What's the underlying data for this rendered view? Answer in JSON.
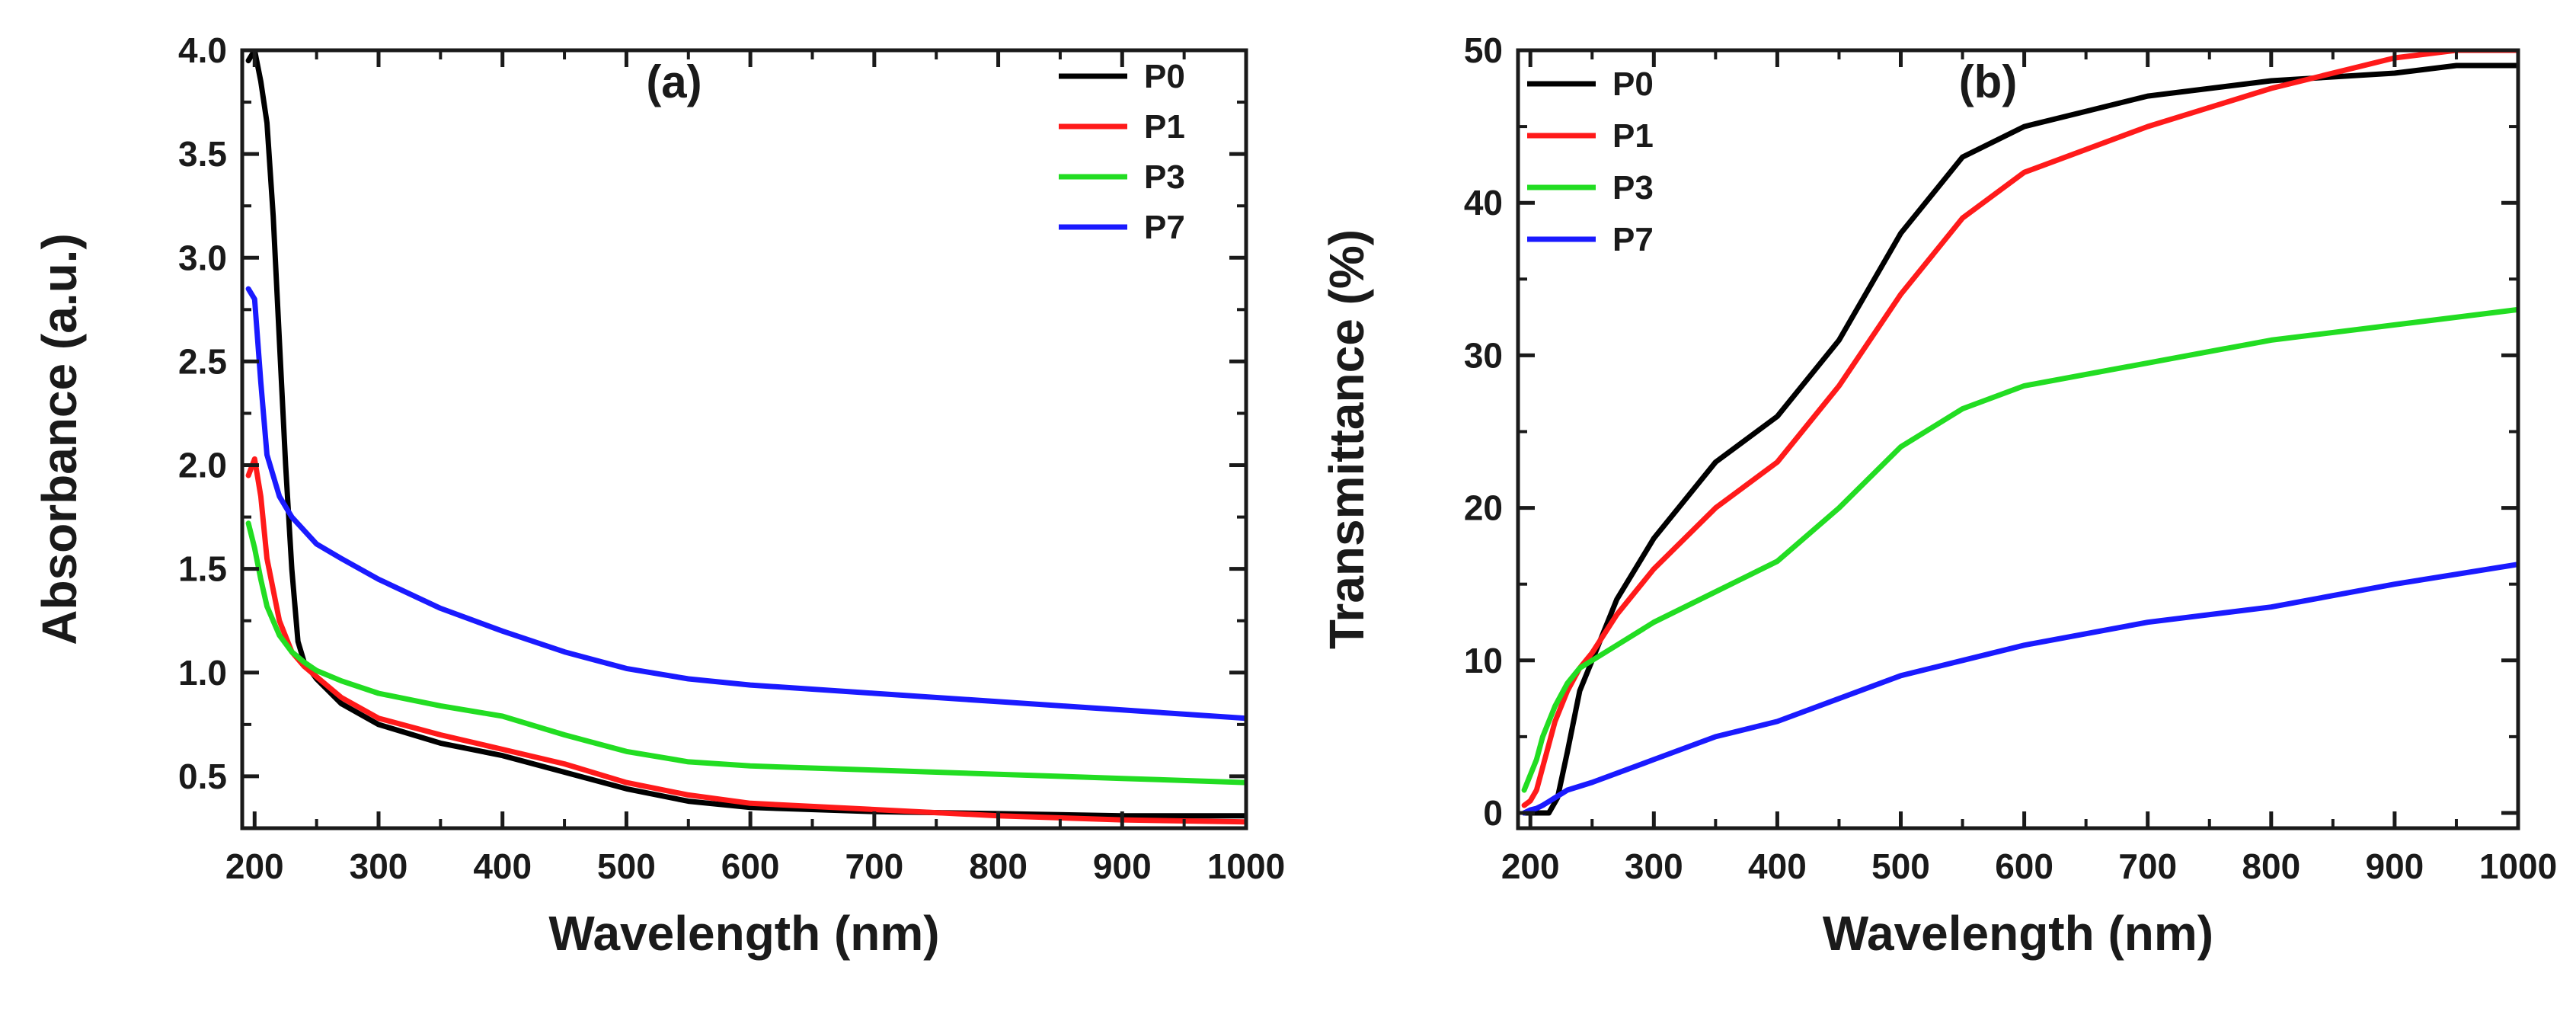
{
  "chart_data": [
    {
      "type": "line",
      "panel_label": "(a)",
      "xlabel": "Wavelength (nm)",
      "ylabel": "Absorbance (a.u.)",
      "xlim": [
        190,
        1000
      ],
      "ylim": [
        0.25,
        4.0
      ],
      "xticks": [
        200,
        300,
        400,
        500,
        600,
        700,
        800,
        900,
        1000
      ],
      "xtick_labels": [
        "200",
        "300",
        "400",
        "500",
        "600",
        "700",
        "800",
        "900",
        "1000"
      ],
      "yticks": [
        0.5,
        1.0,
        1.5,
        2.0,
        2.5,
        3.0,
        3.5,
        4.0
      ],
      "ytick_labels": [
        "0.5",
        "1.0",
        "1.5",
        "2.0",
        "2.5",
        "3.0",
        "3.5",
        "4.0"
      ],
      "legend_position": "top-right",
      "series": [
        {
          "name": "P0",
          "color": "#000000",
          "x": [
            195,
            200,
            205,
            210,
            215,
            220,
            225,
            230,
            235,
            240,
            250,
            270,
            300,
            350,
            400,
            450,
            500,
            550,
            600,
            700,
            800,
            900,
            1000
          ],
          "y": [
            3.95,
            4.0,
            3.85,
            3.65,
            3.2,
            2.6,
            2.0,
            1.5,
            1.15,
            1.05,
            0.97,
            0.85,
            0.75,
            0.66,
            0.6,
            0.52,
            0.44,
            0.38,
            0.35,
            0.33,
            0.32,
            0.31,
            0.31
          ]
        },
        {
          "name": "P1",
          "color": "#ff1a1a",
          "x": [
            195,
            200,
            205,
            210,
            220,
            230,
            240,
            250,
            270,
            300,
            350,
            400,
            450,
            500,
            550,
            600,
            700,
            800,
            900,
            1000
          ],
          "y": [
            1.95,
            2.03,
            1.85,
            1.55,
            1.25,
            1.1,
            1.03,
            0.98,
            0.88,
            0.78,
            0.7,
            0.63,
            0.56,
            0.47,
            0.41,
            0.37,
            0.34,
            0.31,
            0.29,
            0.28
          ]
        },
        {
          "name": "P3",
          "color": "#22dd22",
          "x": [
            195,
            200,
            205,
            210,
            220,
            230,
            240,
            250,
            270,
            300,
            350,
            400,
            450,
            500,
            550,
            600,
            700,
            800,
            900,
            1000
          ],
          "y": [
            1.72,
            1.6,
            1.45,
            1.32,
            1.18,
            1.1,
            1.05,
            1.01,
            0.96,
            0.9,
            0.84,
            0.79,
            0.7,
            0.62,
            0.57,
            0.55,
            0.53,
            0.51,
            0.49,
            0.47
          ]
        },
        {
          "name": "P7",
          "color": "#1a1aff",
          "x": [
            195,
            200,
            205,
            210,
            220,
            230,
            250,
            270,
            300,
            350,
            400,
            450,
            500,
            550,
            600,
            700,
            800,
            900,
            1000
          ],
          "y": [
            2.85,
            2.8,
            2.4,
            2.05,
            1.85,
            1.75,
            1.62,
            1.55,
            1.45,
            1.31,
            1.2,
            1.1,
            1.02,
            0.97,
            0.94,
            0.9,
            0.86,
            0.82,
            0.78
          ]
        }
      ]
    },
    {
      "type": "line",
      "panel_label": "(b)",
      "xlabel": "Wavelength (nm)",
      "ylabel": "Transmittance (%)",
      "xlim": [
        190,
        1000
      ],
      "ylim": [
        -1,
        50
      ],
      "xticks": [
        200,
        300,
        400,
        500,
        600,
        700,
        800,
        900,
        1000
      ],
      "xtick_labels": [
        "200",
        "300",
        "400",
        "500",
        "600",
        "700",
        "800",
        "900",
        "1000"
      ],
      "yticks": [
        0,
        10,
        20,
        30,
        40,
        50
      ],
      "ytick_labels": [
        "0",
        "10",
        "20",
        "30",
        "40",
        "50"
      ],
      "legend_position": "top-left",
      "series": [
        {
          "name": "P0",
          "color": "#000000",
          "x": [
            195,
            205,
            215,
            222,
            230,
            240,
            250,
            270,
            300,
            350,
            400,
            450,
            500,
            550,
            600,
            650,
            700,
            800,
            900,
            950,
            1000
          ],
          "y": [
            0,
            0,
            0,
            1,
            4,
            8,
            10,
            14,
            18,
            23,
            26,
            31,
            38,
            43,
            45,
            46,
            47,
            48,
            48.5,
            49,
            49
          ]
        },
        {
          "name": "P1",
          "color": "#ff1a1a",
          "x": [
            195,
            200,
            205,
            210,
            220,
            230,
            240,
            250,
            270,
            300,
            350,
            400,
            450,
            500,
            550,
            600,
            700,
            800,
            900,
            950,
            1000
          ],
          "y": [
            0.5,
            0.8,
            1.5,
            3,
            6,
            8,
            9.5,
            10.5,
            13,
            16,
            20,
            23,
            28,
            34,
            39,
            42,
            45,
            47.5,
            49.5,
            50,
            50
          ]
        },
        {
          "name": "P3",
          "color": "#22dd22",
          "x": [
            195,
            200,
            205,
            210,
            220,
            230,
            240,
            250,
            270,
            300,
            350,
            400,
            450,
            500,
            550,
            600,
            700,
            800,
            900,
            1000
          ],
          "y": [
            1.5,
            2.5,
            3.5,
            5,
            7,
            8.5,
            9.5,
            10,
            11,
            12.5,
            14.5,
            16.5,
            20,
            24,
            26.5,
            28,
            29.5,
            31,
            32,
            33
          ]
        },
        {
          "name": "P7",
          "color": "#1a1aff",
          "x": [
            195,
            200,
            205,
            210,
            220,
            230,
            250,
            300,
            350,
            400,
            450,
            500,
            550,
            600,
            700,
            800,
            900,
            1000
          ],
          "y": [
            0,
            0.2,
            0.3,
            0.5,
            1,
            1.5,
            2,
            3.5,
            5,
            6,
            7.5,
            9,
            10,
            11,
            12.5,
            13.5,
            15,
            16.3
          ]
        }
      ]
    }
  ]
}
